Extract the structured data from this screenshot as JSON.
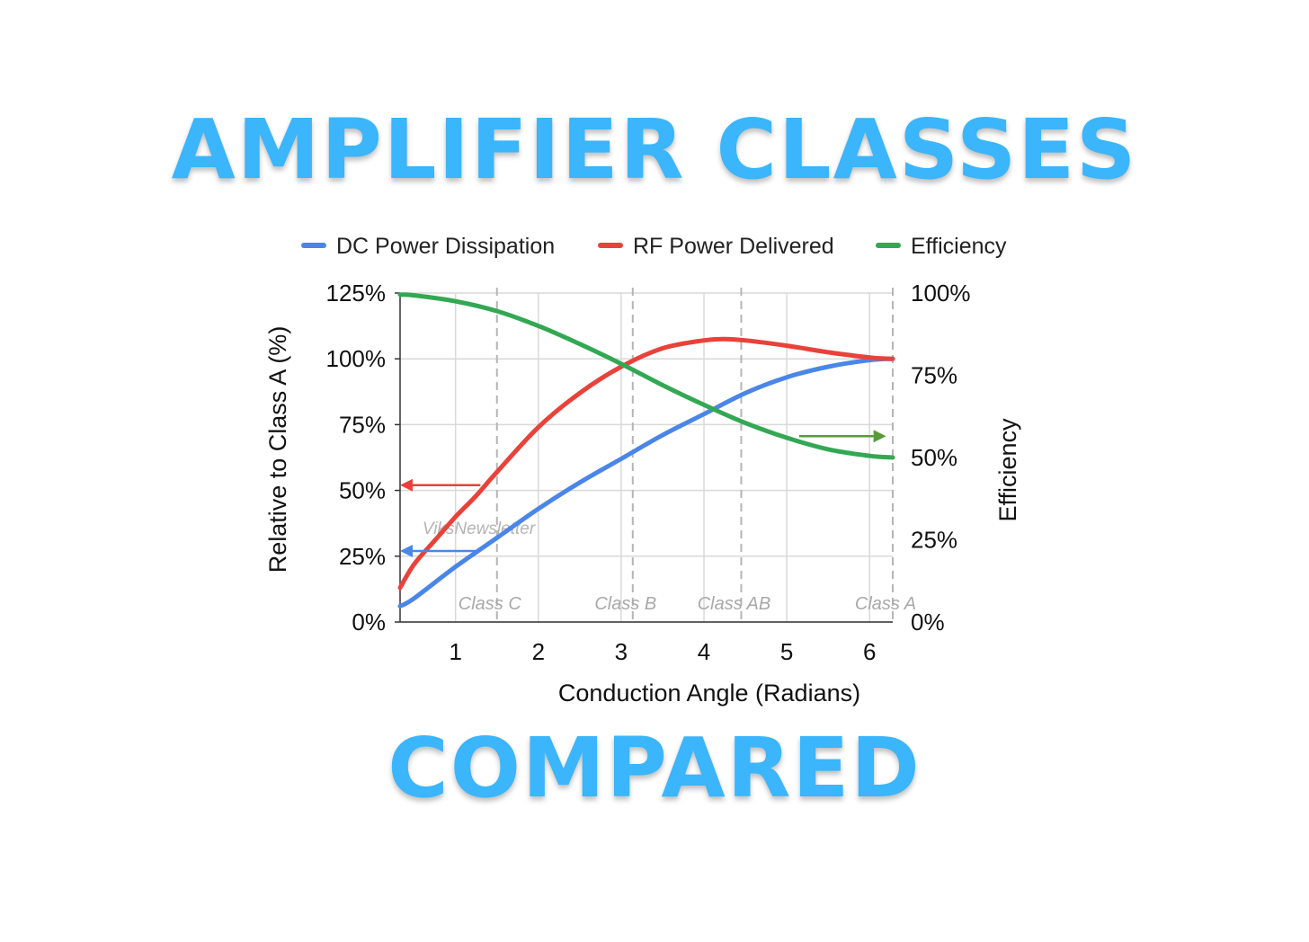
{
  "headline": {
    "top": "AMPLIFIER CLASSES",
    "bottom": "COMPARED"
  },
  "chart_data": {
    "type": "line",
    "xlabel": "Conduction Angle (Radians)",
    "ylabel": "Relative to Class A (%)",
    "y2label": "Efficiency",
    "xlim": [
      0.33,
      6.28
    ],
    "ylim": [
      0,
      125
    ],
    "y2lim": [
      0,
      100
    ],
    "xticks": [
      "1",
      "2",
      "3",
      "4",
      "5",
      "6"
    ],
    "yticks": [
      "0%",
      "25%",
      "50%",
      "75%",
      "100%",
      "125%"
    ],
    "y2ticks": [
      "0%",
      "25%",
      "50%",
      "75%",
      "100%"
    ],
    "grid": true,
    "legend_position": "top",
    "watermark": "ViksNewsletter",
    "series": [
      {
        "name": "DC Power Dissipation",
        "color": "#4a86e8",
        "axis": "left",
        "x": [
          0.33,
          0.5,
          1.0,
          1.5,
          2.0,
          2.5,
          3.0,
          3.5,
          4.0,
          4.5,
          5.0,
          5.5,
          6.0,
          6.28
        ],
        "y": [
          6,
          9,
          21,
          32,
          43,
          53,
          62,
          71,
          79,
          87,
          93,
          97,
          99.5,
          100
        ]
      },
      {
        "name": "RF Power Delivered",
        "color": "#e8423a",
        "axis": "left",
        "x": [
          0.33,
          0.5,
          0.75,
          1.0,
          1.25,
          1.5,
          2.0,
          2.5,
          3.0,
          3.5,
          4.0,
          4.25,
          4.5,
          5.0,
          5.5,
          6.0,
          6.28
        ],
        "y": [
          13,
          22,
          31,
          40,
          48,
          57,
          74,
          87,
          97,
          104,
          107,
          107.5,
          107,
          105,
          102.5,
          100.5,
          100
        ]
      },
      {
        "name": "Efficiency",
        "color": "#33a853",
        "axis": "right",
        "x": [
          0.33,
          0.5,
          1.0,
          1.5,
          2.0,
          2.5,
          3.0,
          3.5,
          4.0,
          4.5,
          5.0,
          5.5,
          6.0,
          6.28
        ],
        "y": [
          99.5,
          99.3,
          97.5,
          94.5,
          90,
          84.5,
          78.5,
          72,
          66,
          60.5,
          56,
          52.5,
          50.5,
          50
        ]
      }
    ],
    "class_markers": [
      {
        "label": "Class C",
        "x": 1.5
      },
      {
        "label": "Class B",
        "x": 3.14
      },
      {
        "label": "Class AB",
        "x": 4.45
      },
      {
        "label": "Class A",
        "x": 6.28
      }
    ],
    "annotations": [
      {
        "name": "rf-arrow",
        "color": "#e8423a",
        "direction": "left",
        "x_from": 1.3,
        "x_to": 0.33,
        "y": 52,
        "axis": "left"
      },
      {
        "name": "dc-arrow",
        "color": "#4a86e8",
        "direction": "left",
        "x_from": 1.3,
        "x_to": 0.33,
        "y": 27,
        "axis": "left"
      },
      {
        "name": "efficiency-arrow",
        "color": "#5a9a3a",
        "direction": "right",
        "x_from": 5.15,
        "x_to": 6.2,
        "y": 56.5,
        "axis": "right"
      }
    ]
  }
}
